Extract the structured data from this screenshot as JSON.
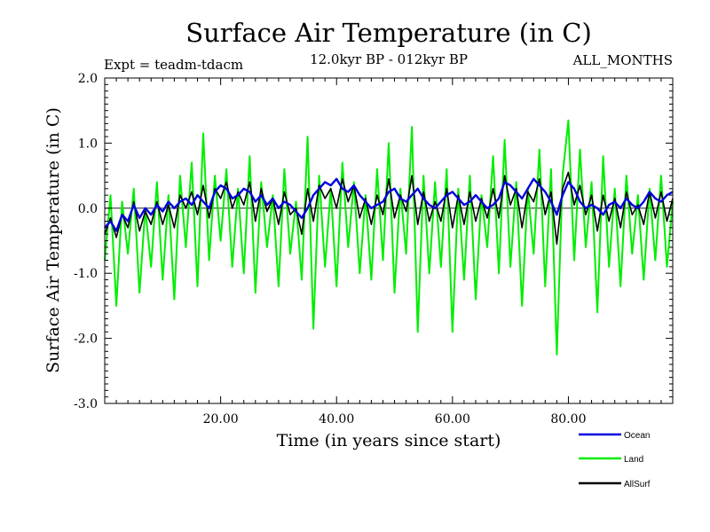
{
  "chart_data": {
    "type": "line",
    "title": "Surface Air Temperature (in C)",
    "subtitle": "12.0kyr BP - 012kyr BP",
    "experiment": "Expt = teadm-tdacm",
    "period": "ALL_MONTHS",
    "xlabel": "Time (in years since start)",
    "ylabel": "Surface Air Temperature (in C)",
    "xlim": [
      0,
      98
    ],
    "ylim": [
      -3.0,
      2.0
    ],
    "x_ticks": [
      20,
      40,
      60,
      80
    ],
    "x_tick_labels": [
      "20.00",
      "40.00",
      "60.00",
      "80.00"
    ],
    "y_ticks": [
      -3.0,
      -2.0,
      -1.0,
      0.0,
      1.0,
      2.0
    ],
    "y_tick_labels": [
      "-3.0",
      "-2.0",
      "-1.0",
      "0.0",
      "1.0",
      "2.0"
    ],
    "reference_line_y": 0.0,
    "legend_position": "bottom-right",
    "series": [
      {
        "name": "Land",
        "color": "#00ee00",
        "x": [
          0,
          1,
          2,
          3,
          4,
          5,
          6,
          7,
          8,
          9,
          10,
          11,
          12,
          13,
          14,
          15,
          16,
          17,
          18,
          19,
          20,
          21,
          22,
          23,
          24,
          25,
          26,
          27,
          28,
          29,
          30,
          31,
          32,
          33,
          34,
          35,
          36,
          37,
          38,
          39,
          40,
          41,
          42,
          43,
          44,
          45,
          46,
          47,
          48,
          49,
          50,
          51,
          52,
          53,
          54,
          55,
          56,
          57,
          58,
          59,
          60,
          61,
          62,
          63,
          64,
          65,
          66,
          67,
          68,
          69,
          70,
          71,
          72,
          73,
          74,
          75,
          76,
          77,
          78,
          79,
          80,
          81,
          82,
          83,
          84,
          85,
          86,
          87,
          88,
          89,
          90,
          91,
          92,
          93,
          94,
          95,
          96,
          97,
          98
        ],
        "values": [
          -0.8,
          0.2,
          -1.5,
          0.1,
          -0.7,
          0.3,
          -1.3,
          0.0,
          -0.9,
          0.4,
          -1.1,
          0.2,
          -1.4,
          0.5,
          -0.6,
          0.7,
          -1.2,
          1.15,
          -0.8,
          0.5,
          -0.5,
          0.6,
          -0.9,
          0.3,
          -1.0,
          0.8,
          -1.3,
          0.4,
          -0.6,
          0.2,
          -1.2,
          0.6,
          -0.7,
          0.1,
          -1.1,
          1.1,
          -1.85,
          0.5,
          -0.9,
          0.3,
          -1.2,
          0.7,
          -0.6,
          0.4,
          -1.0,
          0.2,
          -1.1,
          0.6,
          -0.8,
          1.0,
          -1.3,
          0.3,
          -0.7,
          1.25,
          -1.9,
          0.5,
          -1.0,
          0.4,
          -0.9,
          0.6,
          -1.9,
          0.3,
          -1.1,
          0.5,
          -1.4,
          0.2,
          -0.6,
          0.8,
          -1.0,
          1.05,
          -0.9,
          0.4,
          -1.5,
          0.3,
          -0.7,
          0.9,
          -1.2,
          0.6,
          -2.25,
          0.5,
          1.35,
          -0.8,
          0.9,
          -0.6,
          0.4,
          -1.6,
          0.8,
          -0.9,
          0.3,
          -1.2,
          0.5,
          -0.7,
          0.2,
          -1.1,
          0.3,
          -0.8,
          0.5,
          -0.9,
          0.1
        ]
      },
      {
        "name": "Ocean",
        "color": "#0000dd",
        "x": [
          0,
          1,
          2,
          3,
          4,
          5,
          6,
          7,
          8,
          9,
          10,
          11,
          12,
          13,
          14,
          15,
          16,
          17,
          18,
          19,
          20,
          21,
          22,
          23,
          24,
          25,
          26,
          27,
          28,
          29,
          30,
          31,
          32,
          33,
          34,
          35,
          36,
          37,
          38,
          39,
          40,
          41,
          42,
          43,
          44,
          45,
          46,
          47,
          48,
          49,
          50,
          51,
          52,
          53,
          54,
          55,
          56,
          57,
          58,
          59,
          60,
          61,
          62,
          63,
          64,
          65,
          66,
          67,
          68,
          69,
          70,
          71,
          72,
          73,
          74,
          75,
          76,
          77,
          78,
          79,
          80,
          81,
          82,
          83,
          84,
          85,
          86,
          87,
          88,
          89,
          90,
          91,
          92,
          93,
          94,
          95,
          96,
          97,
          98
        ],
        "values": [
          -0.3,
          -0.2,
          -0.35,
          -0.1,
          -0.2,
          0.05,
          -0.15,
          0.0,
          -0.1,
          0.05,
          -0.05,
          0.1,
          0.0,
          0.1,
          0.15,
          0.05,
          0.2,
          0.1,
          0.0,
          0.25,
          0.35,
          0.3,
          0.15,
          0.2,
          0.3,
          0.25,
          0.1,
          0.2,
          0.05,
          0.15,
          0.0,
          0.1,
          0.05,
          -0.05,
          -0.15,
          0.0,
          0.2,
          0.3,
          0.4,
          0.35,
          0.45,
          0.3,
          0.25,
          0.35,
          0.2,
          0.1,
          0.0,
          0.05,
          0.1,
          0.25,
          0.3,
          0.15,
          0.1,
          0.2,
          0.3,
          0.15,
          0.05,
          0.0,
          0.1,
          0.2,
          0.25,
          0.15,
          0.05,
          0.1,
          0.2,
          0.1,
          0.0,
          0.05,
          0.15,
          0.4,
          0.35,
          0.25,
          0.15,
          0.3,
          0.45,
          0.35,
          0.25,
          0.1,
          -0.1,
          0.2,
          0.4,
          0.3,
          0.1,
          0.0,
          0.05,
          0.0,
          -0.1,
          0.05,
          0.1,
          0.0,
          0.15,
          0.05,
          0.0,
          0.1,
          0.25,
          0.15,
          0.1,
          0.2,
          0.25
        ]
      },
      {
        "name": "AllSurf",
        "color": "#000000",
        "x": [
          0,
          1,
          2,
          3,
          4,
          5,
          6,
          7,
          8,
          9,
          10,
          11,
          12,
          13,
          14,
          15,
          16,
          17,
          18,
          19,
          20,
          21,
          22,
          23,
          24,
          25,
          26,
          27,
          28,
          29,
          30,
          31,
          32,
          33,
          34,
          35,
          36,
          37,
          38,
          39,
          40,
          41,
          42,
          43,
          44,
          45,
          46,
          47,
          48,
          49,
          50,
          51,
          52,
          53,
          54,
          55,
          56,
          57,
          58,
          59,
          60,
          61,
          62,
          63,
          64,
          65,
          66,
          67,
          68,
          69,
          70,
          71,
          72,
          73,
          74,
          75,
          76,
          77,
          78,
          79,
          80,
          81,
          82,
          83,
          84,
          85,
          86,
          87,
          88,
          89,
          90,
          91,
          92,
          93,
          94,
          95,
          96,
          97,
          98
        ],
        "values": [
          -0.4,
          -0.15,
          -0.45,
          -0.1,
          -0.3,
          0.1,
          -0.35,
          -0.05,
          -0.25,
          0.1,
          -0.25,
          0.05,
          -0.3,
          0.2,
          0.0,
          0.25,
          -0.1,
          0.35,
          -0.15,
          0.3,
          0.15,
          0.4,
          0.0,
          0.25,
          0.05,
          0.4,
          -0.2,
          0.3,
          -0.05,
          0.15,
          -0.25,
          0.25,
          -0.1,
          0.0,
          -0.4,
          0.3,
          -0.2,
          0.35,
          0.15,
          0.3,
          0.0,
          0.45,
          0.1,
          0.35,
          -0.15,
          0.15,
          -0.25,
          0.2,
          -0.1,
          0.45,
          -0.15,
          0.2,
          -0.05,
          0.5,
          -0.25,
          0.25,
          -0.2,
          0.1,
          -0.2,
          0.3,
          -0.3,
          0.2,
          -0.25,
          0.25,
          -0.2,
          0.15,
          -0.15,
          0.3,
          -0.15,
          0.5,
          0.05,
          0.3,
          -0.3,
          0.25,
          0.1,
          0.45,
          -0.1,
          0.25,
          -0.55,
          0.3,
          0.55,
          0.05,
          0.35,
          -0.1,
          0.2,
          -0.35,
          0.2,
          -0.2,
          0.15,
          -0.3,
          0.25,
          -0.1,
          0.05,
          -0.25,
          0.25,
          -0.15,
          0.25,
          -0.2,
          0.15
        ]
      }
    ]
  }
}
